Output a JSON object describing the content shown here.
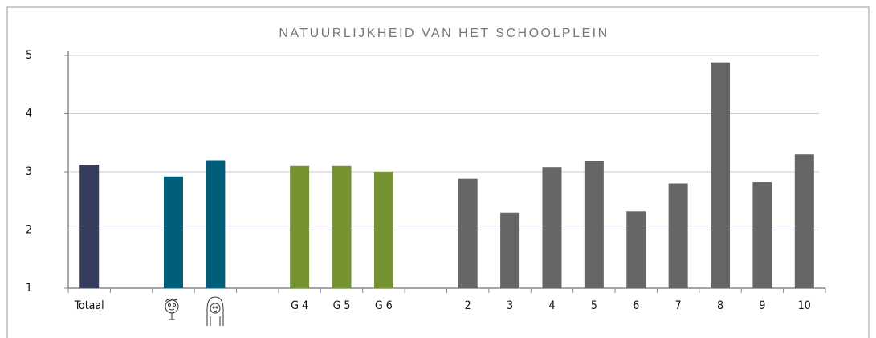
{
  "chart_data": {
    "type": "bar",
    "title": "NATUURLIJKHEID VAN HET SCHOOLPLEIN",
    "categories": [
      "Totaal",
      null,
      null,
      null,
      null,
      "G 4",
      "G 5",
      "G 6",
      null,
      "2",
      "3",
      "4",
      "5",
      "6",
      "7",
      "8",
      "9",
      "10"
    ],
    "values": [
      3.12,
      null,
      2.92,
      3.2,
      null,
      3.1,
      3.1,
      3.0,
      null,
      2.88,
      2.3,
      3.08,
      3.18,
      2.32,
      2.8,
      4.88,
      2.82,
      3.3
    ],
    "colors": [
      "#353d5e",
      null,
      "#015e78",
      "#015e78",
      null,
      "#769331",
      "#769331",
      "#769331",
      null,
      "#676565",
      "#676565",
      "#676565",
      "#676565",
      "#676565",
      "#676565",
      "#676565",
      "#676565",
      "#676565"
    ],
    "ylim": [
      1,
      5
    ],
    "yticks": [
      1,
      2,
      3,
      4,
      5
    ],
    "grid": true
  }
}
